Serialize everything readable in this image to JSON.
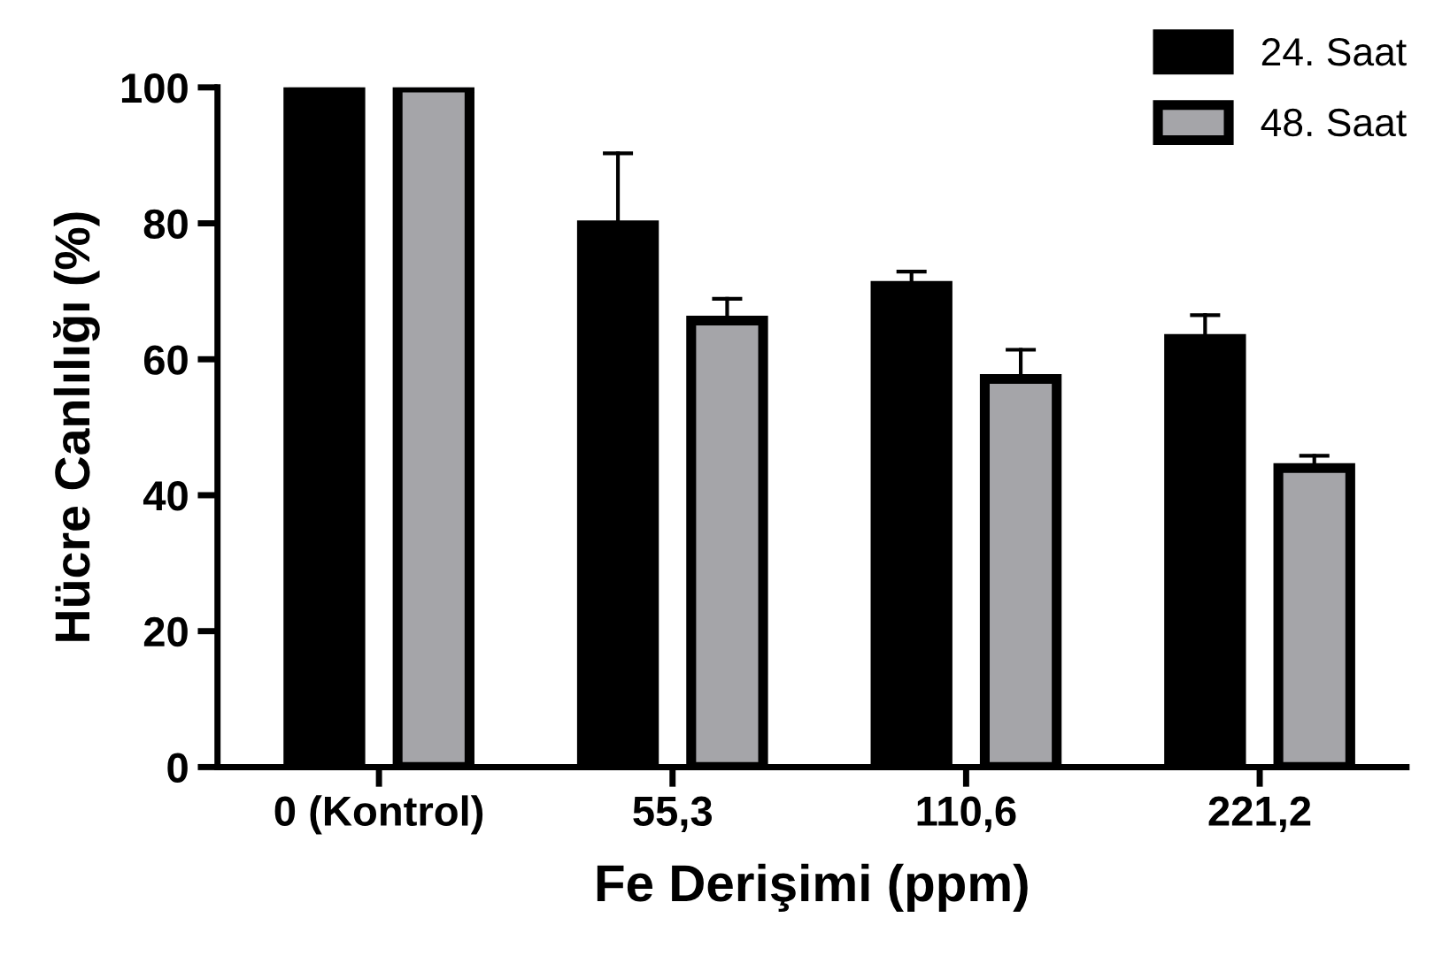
{
  "chart_data": {
    "type": "bar",
    "xlabel": "Fe Derişimi (ppm)",
    "ylabel": "Hücre Canlılığı (%)",
    "categories": [
      "0 (Kontrol)",
      "55,3",
      "110,6",
      "221,2"
    ],
    "series": [
      {
        "name": "24. Saat",
        "color": "#000000",
        "values": [
          100,
          79.7,
          70.8,
          63.0
        ],
        "errors": [
          null,
          [
            79.7,
            90.3
          ],
          [
            70.8,
            72.9
          ],
          [
            63.0,
            66.5
          ]
        ]
      },
      {
        "name": "48. Saat",
        "color": "#a5a5a9",
        "values": [
          100,
          65.7,
          57.1,
          44.0
        ],
        "errors": [
          null,
          [
            65.7,
            68.9
          ],
          [
            57.1,
            61.4
          ],
          [
            44.0,
            45.8
          ]
        ]
      }
    ],
    "ylim": [
      0,
      100
    ],
    "yticks": [
      0,
      20,
      40,
      60,
      80,
      100
    ],
    "grid": false,
    "legend": "top right"
  }
}
